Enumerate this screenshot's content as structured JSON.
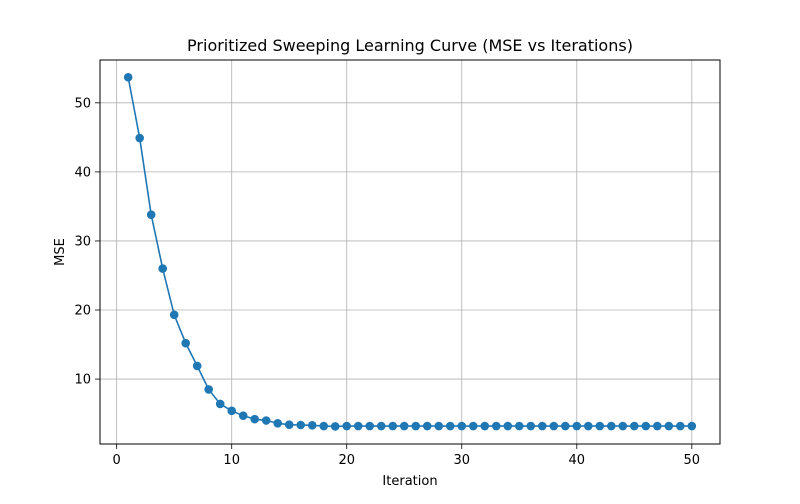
{
  "chart_data": {
    "type": "line",
    "title": "Prioritized Sweeping Learning Curve (MSE vs Iterations)",
    "xlabel": "Iteration",
    "ylabel": "MSE",
    "xlim": [
      -1.45,
      52.45
    ],
    "ylim": [
      0.6,
      56.2
    ],
    "x_ticks": [
      0,
      10,
      20,
      30,
      40,
      50
    ],
    "y_ticks": [
      10,
      20,
      30,
      40,
      50
    ],
    "x_tick_labels": [
      "0",
      "10",
      "20",
      "30",
      "40",
      "50"
    ],
    "y_tick_labels": [
      "10",
      "20",
      "30",
      "40",
      "50"
    ],
    "grid": true,
    "legend": false,
    "series": [
      {
        "color": "#1f77b4",
        "marker": "circle",
        "x": [
          1,
          2,
          3,
          4,
          5,
          6,
          7,
          8,
          9,
          10,
          11,
          12,
          13,
          14,
          15,
          16,
          17,
          18,
          19,
          20,
          21,
          22,
          23,
          24,
          25,
          26,
          27,
          28,
          29,
          30,
          31,
          32,
          33,
          34,
          35,
          36,
          37,
          38,
          39,
          40,
          41,
          42,
          43,
          44,
          45,
          46,
          47,
          48,
          49,
          50
        ],
        "y": [
          53.7,
          44.9,
          33.8,
          26.0,
          19.3,
          15.2,
          11.9,
          8.5,
          6.4,
          5.4,
          4.7,
          4.2,
          4.0,
          3.6,
          3.4,
          3.35,
          3.3,
          3.2,
          3.15,
          3.2,
          3.2,
          3.2,
          3.2,
          3.2,
          3.2,
          3.2,
          3.2,
          3.2,
          3.2,
          3.2,
          3.2,
          3.2,
          3.2,
          3.2,
          3.2,
          3.2,
          3.2,
          3.2,
          3.2,
          3.2,
          3.2,
          3.2,
          3.2,
          3.2,
          3.2,
          3.2,
          3.2,
          3.2,
          3.2,
          3.2
        ]
      }
    ]
  }
}
